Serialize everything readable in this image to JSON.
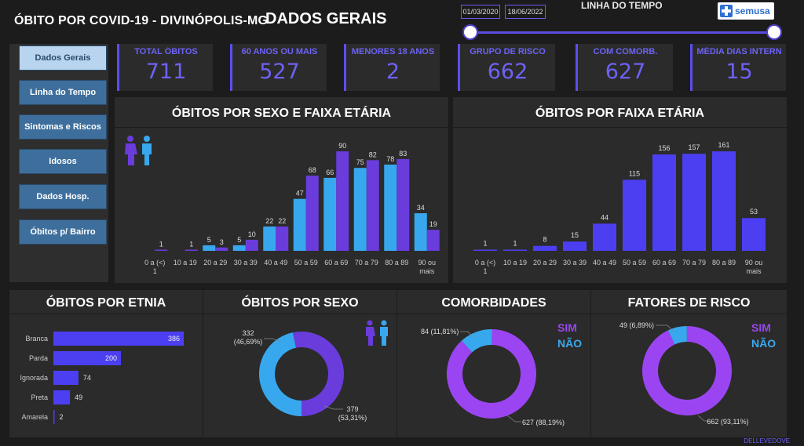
{
  "header": {
    "title": "ÓBITO POR COVID-19  - DIVINÓPOLIS-MG",
    "subtitle": "DADOS GERAIS",
    "timeline_label": "LINHA DO TEMPO",
    "date_start": "01/03/2020",
    "date_end": "18/06/2022",
    "logo_text": "semusa"
  },
  "nav": [
    {
      "label": "Dados Gerais",
      "active": true
    },
    {
      "label": "Linha do Tempo"
    },
    {
      "label": "Sintomas e Riscos"
    },
    {
      "label": "Idosos"
    },
    {
      "label": "Dados Hosp."
    },
    {
      "label": "Óbitos p/ Bairro"
    }
  ],
  "kpis": [
    {
      "label": "TOTAL ÓBITOS",
      "value": "711"
    },
    {
      "label": "60 ANOS OU MAIS",
      "value": "527"
    },
    {
      "label": "MENORES 18 ANOS",
      "value": "2"
    },
    {
      "label": "GRUPO DE RISCO",
      "value": "662"
    },
    {
      "label": "COM COMORB.",
      "value": "627"
    },
    {
      "label": "MÉDIA DIAS INTERN",
      "value": "15"
    }
  ],
  "colors": {
    "accent": "#6d62f5",
    "blue_light": "#38a8ee",
    "purple": "#6a3cdc",
    "bar_blue": "#4c3ff2",
    "donut_purple": "#9b45f2"
  },
  "footer": {
    "credit": "DELLEVEDOVE"
  },
  "chart_data": [
    {
      "type": "bar",
      "title": "ÓBITOS POR SEXO E FAIXA ETÁRIA",
      "categories": [
        "0 a (<) 1",
        "10 a 19",
        "20 a 29",
        "30 a 39",
        "40 a 49",
        "50 a 59",
        "60 a 69",
        "70 a 79",
        "80 a 89",
        "90 ou mais"
      ],
      "series": [
        {
          "values": [
            0,
            0,
            5,
            5,
            22,
            47,
            66,
            75,
            78,
            34
          ],
          "color": "#38a8ee"
        },
        {
          "values": [
            1,
            1,
            3,
            10,
            22,
            68,
            90,
            82,
            83,
            19
          ],
          "color": "#6a3cdc"
        }
      ],
      "legend": "top-left icons"
    },
    {
      "type": "bar",
      "title": "ÓBITOS POR FAIXA ETÁRIA",
      "categories": [
        "0 a (<) 1",
        "10 a 19",
        "20 a 29",
        "30 a 39",
        "40 a 49",
        "50 a 59",
        "60 a 69",
        "70 a 79",
        "80 a 89",
        "90 ou mais"
      ],
      "values": [
        1,
        1,
        8,
        15,
        44,
        115,
        156,
        157,
        161,
        53
      ]
    },
    {
      "type": "bar",
      "orientation": "horizontal",
      "title": "ÓBITOS POR ETNIA",
      "categories": [
        "Branca",
        "Parda",
        "Ignorada",
        "Preta",
        "Amarela"
      ],
      "values": [
        386,
        200,
        74,
        49,
        2
      ]
    },
    {
      "type": "pie",
      "title": "ÓBITOS POR SEXO",
      "labels": [
        "332 (46,69%)",
        "379 (53,31%)"
      ],
      "values": [
        332,
        379
      ],
      "colors": [
        "#38a8ee",
        "#6a3cdc"
      ]
    },
    {
      "type": "pie",
      "title": "COMORBIDADES",
      "legend": [
        "SIM",
        "NÃO"
      ],
      "labels": [
        "84 (11,81%)",
        "627 (88,19%)"
      ],
      "values": [
        84,
        627
      ],
      "colors": [
        "#38a8ee",
        "#9b45f2"
      ]
    },
    {
      "type": "pie",
      "title": "FATORES DE RISCO",
      "legend": [
        "SIM",
        "NÃO"
      ],
      "labels": [
        "49 (6,89%)",
        "662 (93,11%)"
      ],
      "values": [
        49,
        662
      ],
      "colors": [
        "#38a8ee",
        "#9b45f2"
      ]
    }
  ]
}
